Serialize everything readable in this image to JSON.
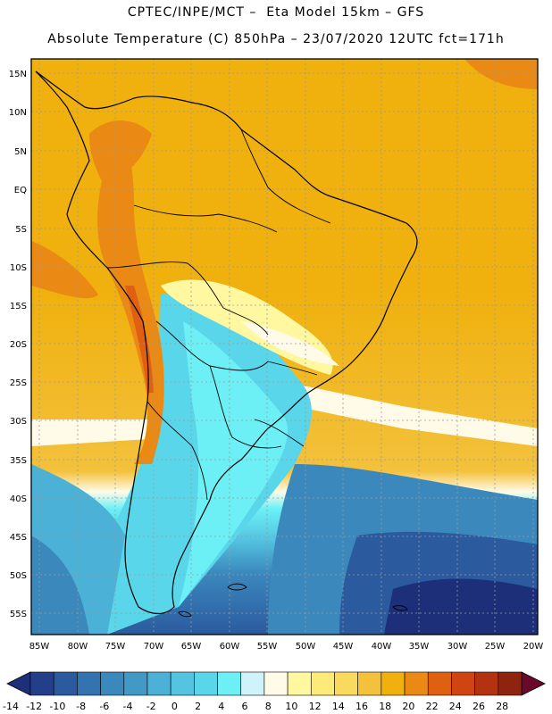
{
  "header": {
    "line1": "CPTEC/INPE/MCT –  Eta Model 15km – GFS",
    "line2": "Absolute Temperature (C) 850hPa – 23/07/2020 12UTC fct=171h"
  },
  "axes": {
    "lat_labels": [
      "15N",
      "10N",
      "5N",
      "EQ",
      "5S",
      "10S",
      "15S",
      "20S",
      "25S",
      "30S",
      "35S",
      "40S",
      "45S",
      "50S",
      "55S"
    ],
    "lon_labels": [
      "85W",
      "80W",
      "75W",
      "70W",
      "65W",
      "60W",
      "55W",
      "50W",
      "45W",
      "40W",
      "35W",
      "30W",
      "25W",
      "20W"
    ]
  },
  "colorbar": {
    "labels": [
      "-14",
      "-12",
      "-10",
      "-8",
      "-6",
      "-4",
      "-2",
      "0",
      "2",
      "4",
      "6",
      "8",
      "10",
      "12",
      "14",
      "16",
      "18",
      "20",
      "22",
      "24",
      "26",
      "28"
    ],
    "colors": [
      "#243f8a",
      "#2b5a9f",
      "#3373b0",
      "#3b88bd",
      "#4399c6",
      "#4cb1d6",
      "#54c4e0",
      "#5ad6ea",
      "#6cf0f6",
      "#cff3fb",
      "#fffbe8",
      "#fff8a0",
      "#feea78",
      "#f9da5c",
      "#f3c13c",
      "#f0b10e",
      "#ea8a14",
      "#e06012",
      "#cf4410",
      "#b33210",
      "#8e2410"
    ],
    "low_color": "#1c2f78",
    "high_color": "#6a0a2a"
  },
  "icons": {
    "left_arrow": "triangle-left-icon",
    "right_arrow": "triangle-right-icon"
  }
}
